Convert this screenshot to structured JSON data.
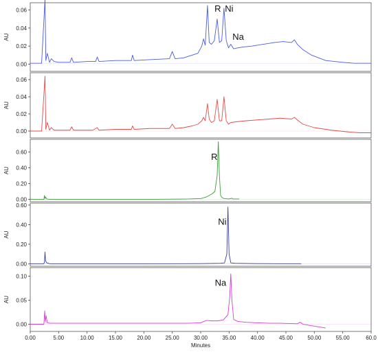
{
  "chart_data": [
    {
      "type": "line",
      "ylabel": "AU",
      "xlim": [
        0,
        60
      ],
      "ylim": [
        -0.008,
        0.068
      ],
      "yticks": [
        "0.00",
        "0.02",
        "0.04",
        "0.06"
      ],
      "ytick_values": [
        0.0,
        0.02,
        0.04,
        0.06
      ],
      "color": "#4a5ae0",
      "baseline": 0.001,
      "series": [
        {
          "x": [
            0,
            2.0,
            2.6,
            2.75,
            3.0,
            3.4,
            3.7,
            4.2,
            5.0,
            7.0,
            7.3,
            7.6,
            10.0,
            11.5,
            11.8,
            12.1,
            15.0,
            17.8,
            18.0,
            18.3,
            21.0,
            24.5,
            25.0,
            25.5,
            27.0,
            28.5,
            29.5,
            30.2,
            30.5,
            30.8,
            31.2,
            31.5,
            31.9,
            32.4,
            32.9,
            33.3,
            33.7,
            34.1,
            34.5,
            34.9,
            35.3,
            35.8,
            36.5,
            37.5,
            39.0,
            41.0,
            43.0,
            44.5,
            46.0,
            46.5,
            47.0,
            48.0,
            49.5,
            52.0,
            55.0,
            57.0,
            60.0
          ],
          "y": [
            0.001,
            0.001,
            0.072,
            0.004,
            0.012,
            0.002,
            0.006,
            0.003,
            0.002,
            0.002,
            0.007,
            0.002,
            0.003,
            0.003,
            0.008,
            0.003,
            0.004,
            0.004,
            0.01,
            0.004,
            0.005,
            0.006,
            0.014,
            0.006,
            0.007,
            0.01,
            0.012,
            0.02,
            0.028,
            0.021,
            0.065,
            0.024,
            0.022,
            0.026,
            0.05,
            0.024,
            0.026,
            0.062,
            0.026,
            0.018,
            0.022,
            0.017,
            0.018,
            0.019,
            0.02,
            0.022,
            0.024,
            0.025,
            0.024,
            0.027,
            0.022,
            0.016,
            0.01,
            0.004,
            0.002,
            0.001,
            0.001
          ]
        }
      ],
      "annotations": [
        {
          "text": "R",
          "x": 33.0,
          "y": 0.058
        },
        {
          "text": "Ni",
          "x": 35.0,
          "y": 0.058
        },
        {
          "text": "Na",
          "x": 36.6,
          "y": 0.027
        }
      ]
    },
    {
      "type": "line",
      "ylabel": "AU",
      "xlim": [
        0,
        60
      ],
      "ylim": [
        -0.008,
        0.068
      ],
      "yticks": [
        "0.00",
        "0.02",
        "0.04",
        "0.06"
      ],
      "ytick_values": [
        0.0,
        0.02,
        0.04,
        0.06
      ],
      "color": "#e04a4a",
      "baseline": 0.0,
      "series": [
        {
          "x": [
            0,
            2.0,
            2.6,
            2.75,
            3.0,
            3.4,
            3.7,
            4.2,
            5.0,
            7.0,
            7.3,
            7.6,
            11.0,
            11.8,
            12.1,
            15.0,
            17.8,
            18.0,
            18.3,
            21.0,
            24.5,
            25.0,
            25.5,
            27.0,
            28.5,
            29.5,
            30.2,
            30.5,
            30.8,
            31.2,
            31.5,
            31.9,
            32.4,
            32.9,
            33.3,
            33.7,
            34.1,
            34.5,
            34.9,
            35.3,
            36.5,
            38.0,
            40.0,
            42.0,
            44.0,
            46.0,
            46.5,
            47.0,
            48.0,
            50.0,
            53.0,
            56.0,
            58.0,
            60.0
          ],
          "y": [
            0.0,
            0.0,
            0.064,
            0.002,
            0.01,
            0.001,
            0.004,
            0.001,
            0.001,
            0.001,
            0.005,
            0.001,
            0.001,
            0.004,
            0.001,
            0.002,
            0.002,
            0.006,
            0.002,
            0.003,
            0.003,
            0.008,
            0.003,
            0.004,
            0.006,
            0.008,
            0.012,
            0.016,
            0.012,
            0.032,
            0.014,
            0.01,
            0.012,
            0.037,
            0.012,
            0.012,
            0.04,
            0.012,
            0.008,
            0.01,
            0.011,
            0.012,
            0.013,
            0.014,
            0.015,
            0.014,
            0.016,
            0.013,
            0.008,
            0.004,
            0.001,
            -0.001,
            -0.002,
            -0.002
          ]
        }
      ],
      "annotations": []
    },
    {
      "type": "line",
      "ylabel": "AU",
      "xlim": [
        0,
        60
      ],
      "ylim": [
        -0.03,
        0.76
      ],
      "yticks": [
        "0.00",
        "0.20",
        "0.40",
        "0.60"
      ],
      "ytick_values": [
        0.0,
        0.2,
        0.4,
        0.6
      ],
      "color": "#3d9b3d",
      "baseline": 0.0,
      "series": [
        {
          "x": [
            0,
            2.4,
            2.5,
            2.6,
            2.7,
            2.9,
            3.5,
            10.0,
            20.0,
            28.0,
            30.0,
            31.0,
            32.0,
            32.5,
            32.9,
            33.1,
            33.3,
            33.5,
            33.8,
            34.2,
            35.0,
            35.5,
            35.7,
            36.0,
            36.8
          ],
          "y": [
            0.0,
            0.0,
            0.05,
            0.01,
            0.03,
            0.005,
            0.0,
            0.0,
            0.0,
            0.005,
            0.01,
            0.03,
            0.07,
            0.1,
            0.3,
            0.73,
            0.3,
            0.05,
            0.02,
            0.01,
            0.005,
            0.015,
            0.005,
            0.005,
            0.005
          ]
        }
      ],
      "annotations": [
        {
          "text": "R",
          "x": 32.4,
          "y": 0.5
        }
      ]
    },
    {
      "type": "line",
      "ylabel": "AU",
      "xlim": [
        0,
        60
      ],
      "ylim": [
        -0.025,
        0.62
      ],
      "yticks": [
        "0.00",
        "0.20",
        "0.40",
        "0.60"
      ],
      "ytick_values": [
        0.0,
        0.2,
        0.4,
        0.6
      ],
      "color": "#3d3d9e",
      "baseline": 0.0,
      "series": [
        {
          "x": [
            0,
            2.4,
            2.5,
            2.6,
            2.7,
            2.9,
            3.5,
            10.0,
            20.0,
            30.0,
            33.5,
            34.2,
            34.6,
            34.8,
            35.0,
            35.3,
            36.0,
            40.0,
            44.0,
            47.7
          ],
          "y": [
            0.0,
            0.0,
            0.02,
            0.12,
            0.03,
            0.01,
            0.0,
            0.0,
            0.0,
            0.002,
            0.005,
            0.01,
            0.1,
            0.58,
            0.1,
            0.01,
            0.005,
            0.002,
            0.001,
            0.001
          ]
        }
      ],
      "annotations": [
        {
          "text": "Ni",
          "x": 33.8,
          "y": 0.4
        }
      ]
    },
    {
      "type": "line",
      "ylabel": "AU",
      "xlim": [
        0,
        60
      ],
      "ylim": [
        -0.015,
        0.118
      ],
      "yticks": [
        "0.00",
        "0.05",
        "0.10"
      ],
      "ytick_values": [
        0.0,
        0.05,
        0.1
      ],
      "color": "#d040d0",
      "baseline": 0.0,
      "xticks": [
        "0.00",
        "5.00",
        "10.00",
        "15.00",
        "20.00",
        "25.00",
        "30.00",
        "35.00",
        "40.00",
        "45.00",
        "50.00",
        "55.00",
        "60.0"
      ],
      "xtick_values": [
        0,
        5,
        10,
        15,
        20,
        25,
        30,
        35,
        40,
        45,
        50,
        55,
        60
      ],
      "xlabel": "Minutes",
      "series": [
        {
          "x": [
            0,
            2.4,
            2.55,
            2.65,
            2.8,
            3.0,
            3.5,
            5.0,
            10.0,
            15.0,
            20.0,
            25.0,
            28.0,
            30.0,
            31.0,
            32.0,
            33.0,
            34.0,
            34.8,
            35.1,
            35.3,
            35.5,
            35.8,
            36.5,
            38.0,
            40.0,
            42.0,
            44.0,
            47.0,
            47.5,
            48.0,
            50.0,
            52.0
          ],
          "y": [
            0.0,
            0.0,
            0.028,
            0.005,
            0.018,
            0.003,
            0.002,
            0.002,
            0.002,
            0.002,
            0.002,
            0.002,
            0.002,
            0.003,
            0.008,
            0.007,
            0.007,
            0.009,
            0.02,
            0.055,
            0.105,
            0.05,
            0.01,
            0.006,
            0.004,
            0.003,
            0.002,
            0.002,
            0.001,
            0.004,
            0.0,
            -0.004,
            -0.008
          ]
        }
      ],
      "annotations": [
        {
          "text": "Na",
          "x": 33.5,
          "y": 0.08
        }
      ]
    }
  ]
}
